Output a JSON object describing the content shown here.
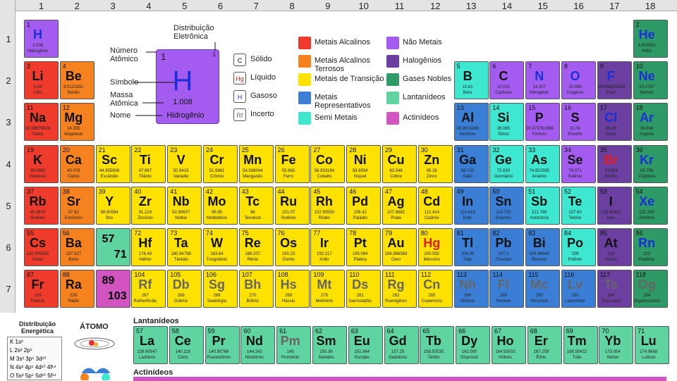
{
  "groups": [
    "1",
    "2",
    "3",
    "4",
    "5",
    "6",
    "7",
    "8",
    "9",
    "10",
    "11",
    "12",
    "13",
    "14",
    "15",
    "16",
    "17",
    "18"
  ],
  "periods": [
    "1",
    "2",
    "3",
    "4",
    "5",
    "6",
    "7"
  ],
  "colors": {
    "alkali": "#ee3b2b",
    "alkaline": "#f5821f",
    "transition": "#fde200",
    "representative": "#3a7fd5",
    "semimetal": "#3ee8d0",
    "nonmetal": "#a45cf0",
    "halogen": "#6b3fa0",
    "noble": "#2e9a66",
    "lanthanide": "#5fd3a0",
    "actinide": "#d154c0",
    "unknown": "#9e9e9e"
  },
  "legend": {
    "distribuicao": "Distribuição Eletrônica",
    "numero": "Número Atômico",
    "simbolo": "Símbolo",
    "massa": "Massa Atômica",
    "nome": "Nome",
    "example": {
      "num": "1",
      "sym": "H",
      "mass": "1.008",
      "name": "Hidrogênio"
    },
    "states": [
      {
        "key": "C",
        "label": "Sólido"
      },
      {
        "key": "Hg",
        "label": "Líquido"
      },
      {
        "key": "H",
        "label": "Gasoso"
      },
      {
        "key": "Rf",
        "label": "Incerto"
      }
    ],
    "categories": [
      {
        "cat": "alkali",
        "label": "Metais Alcalinos"
      },
      {
        "cat": "alkaline",
        "label": "Metais Alcalinos Terrosos"
      },
      {
        "cat": "transition",
        "label": "Metais de Transição"
      },
      {
        "cat": "representative",
        "label": "Metais Representativos"
      },
      {
        "cat": "semimetal",
        "label": "Semi Metais"
      },
      {
        "cat": "nonmetal",
        "label": "Não Metais"
      },
      {
        "cat": "halogen",
        "label": "Halogênios"
      },
      {
        "cat": "noble",
        "label": "Gases Nobles"
      },
      {
        "cat": "lanthanide",
        "label": "Lantanídeos"
      },
      {
        "cat": "actinide",
        "label": "Actinídeos"
      }
    ]
  },
  "series_labels": {
    "lantanideos": "Lantanídeos",
    "actinideos": "Actinídeos",
    "lan_range": "57\n71",
    "act_range": "89\n103"
  },
  "bottom_left": {
    "title": "Distribuição Energética",
    "atom": "ÁTOMO",
    "shells": [
      "K",
      "L",
      "M",
      "N",
      "O"
    ],
    "orbitals": [
      "1s²",
      "2s² 2p⁶",
      "3s² 3p⁶ 3d¹⁰",
      "4s² 4p⁶ 4d¹⁰ 4f¹⁴",
      "5s² 5p⁶ 5d¹⁰ 5f¹⁴"
    ]
  },
  "elements": [
    {
      "n": "1",
      "s": "H",
      "m": "1.008",
      "name": "Hidrogênio",
      "g": 1,
      "p": 1,
      "c": "nonmetal"
    },
    {
      "n": "2",
      "s": "He",
      "m": "4.002602",
      "name": "Hélio",
      "g": 18,
      "p": 1,
      "c": "noble"
    },
    {
      "n": "3",
      "s": "Li",
      "m": "6.94",
      "name": "Lítio",
      "g": 1,
      "p": 2,
      "c": "alkali"
    },
    {
      "n": "4",
      "s": "Be",
      "m": "9.0121831",
      "name": "Berílio",
      "g": 2,
      "p": 2,
      "c": "alkaline"
    },
    {
      "n": "5",
      "s": "B",
      "m": "10.81",
      "name": "Boro",
      "g": 13,
      "p": 2,
      "c": "semimetal"
    },
    {
      "n": "6",
      "s": "C",
      "m": "12.011",
      "name": "Carbono",
      "g": 14,
      "p": 2,
      "c": "nonmetal"
    },
    {
      "n": "7",
      "s": "N",
      "m": "14.007",
      "name": "Nitrogênio",
      "g": 15,
      "p": 2,
      "c": "nonmetal"
    },
    {
      "n": "8",
      "s": "O",
      "m": "15.999",
      "name": "Oxigênio",
      "g": 16,
      "p": 2,
      "c": "nonmetal"
    },
    {
      "n": "9",
      "s": "F",
      "m": "18.998403163",
      "name": "Flúor",
      "g": 17,
      "p": 2,
      "c": "halogen"
    },
    {
      "n": "10",
      "s": "Ne",
      "m": "20.1797",
      "name": "Neônio",
      "g": 18,
      "p": 2,
      "c": "noble"
    },
    {
      "n": "11",
      "s": "Na",
      "m": "22.98976928",
      "name": "Sódio",
      "g": 1,
      "p": 3,
      "c": "alkali"
    },
    {
      "n": "12",
      "s": "Mg",
      "m": "24.305",
      "name": "Magnésio",
      "g": 2,
      "p": 3,
      "c": "alkaline"
    },
    {
      "n": "13",
      "s": "Al",
      "m": "26.9815385",
      "name": "Alumínio",
      "g": 13,
      "p": 3,
      "c": "representative"
    },
    {
      "n": "14",
      "s": "Si",
      "m": "28.085",
      "name": "Silício",
      "g": 14,
      "p": 3,
      "c": "semimetal"
    },
    {
      "n": "15",
      "s": "P",
      "m": "30.973761998",
      "name": "Fósforo",
      "g": 15,
      "p": 3,
      "c": "nonmetal"
    },
    {
      "n": "16",
      "s": "S",
      "m": "32.06",
      "name": "Enxofre",
      "g": 16,
      "p": 3,
      "c": "nonmetal"
    },
    {
      "n": "17",
      "s": "Cl",
      "m": "35.45",
      "name": "Cloro",
      "g": 17,
      "p": 3,
      "c": "halogen"
    },
    {
      "n": "18",
      "s": "Ar",
      "m": "39.948",
      "name": "Argônio",
      "g": 18,
      "p": 3,
      "c": "noble"
    },
    {
      "n": "19",
      "s": "K",
      "m": "39.0983",
      "name": "Potássio",
      "g": 1,
      "p": 4,
      "c": "alkali"
    },
    {
      "n": "20",
      "s": "Ca",
      "m": "40.078",
      "name": "Cálcio",
      "g": 2,
      "p": 4,
      "c": "alkaline"
    },
    {
      "n": "21",
      "s": "Sc",
      "m": "44.955908",
      "name": "Escândio",
      "g": 3,
      "p": 4,
      "c": "transition"
    },
    {
      "n": "22",
      "s": "Ti",
      "m": "47.867",
      "name": "Titânio",
      "g": 4,
      "p": 4,
      "c": "transition"
    },
    {
      "n": "23",
      "s": "V",
      "m": "50.9415",
      "name": "Vanádio",
      "g": 5,
      "p": 4,
      "c": "transition"
    },
    {
      "n": "24",
      "s": "Cr",
      "m": "51.9961",
      "name": "Crômio",
      "g": 6,
      "p": 4,
      "c": "transition"
    },
    {
      "n": "25",
      "s": "Mn",
      "m": "54.938044",
      "name": "Manganês",
      "g": 7,
      "p": 4,
      "c": "transition"
    },
    {
      "n": "26",
      "s": "Fe",
      "m": "55.845",
      "name": "Ferro",
      "g": 8,
      "p": 4,
      "c": "transition"
    },
    {
      "n": "27",
      "s": "Co",
      "m": "58.933194",
      "name": "Cobalto",
      "g": 9,
      "p": 4,
      "c": "transition"
    },
    {
      "n": "28",
      "s": "Ni",
      "m": "58.6934",
      "name": "Níquel",
      "g": 10,
      "p": 4,
      "c": "transition"
    },
    {
      "n": "29",
      "s": "Cu",
      "m": "63.546",
      "name": "Cobre",
      "g": 11,
      "p": 4,
      "c": "transition"
    },
    {
      "n": "30",
      "s": "Zn",
      "m": "65.38",
      "name": "Zinco",
      "g": 12,
      "p": 4,
      "c": "transition"
    },
    {
      "n": "31",
      "s": "Ga",
      "m": "69.723",
      "name": "Gálio",
      "g": 13,
      "p": 4,
      "c": "representative"
    },
    {
      "n": "32",
      "s": "Ge",
      "m": "72.630",
      "name": "Germânio",
      "g": 14,
      "p": 4,
      "c": "semimetal"
    },
    {
      "n": "33",
      "s": "As",
      "m": "74.921595",
      "name": "Arsênio",
      "g": 15,
      "p": 4,
      "c": "semimetal"
    },
    {
      "n": "34",
      "s": "Se",
      "m": "78.971",
      "name": "Selênio",
      "g": 16,
      "p": 4,
      "c": "nonmetal"
    },
    {
      "n": "35",
      "s": "Br",
      "m": "79.904",
      "name": "Bromo",
      "g": 17,
      "p": 4,
      "c": "halogen"
    },
    {
      "n": "36",
      "s": "Kr",
      "m": "83.798",
      "name": "Criptônio",
      "g": 18,
      "p": 4,
      "c": "noble"
    },
    {
      "n": "37",
      "s": "Rb",
      "m": "85.4678",
      "name": "Rubídio",
      "g": 1,
      "p": 5,
      "c": "alkali"
    },
    {
      "n": "38",
      "s": "Sr",
      "m": "87.62",
      "name": "Estrôncio",
      "g": 2,
      "p": 5,
      "c": "alkaline"
    },
    {
      "n": "39",
      "s": "Y",
      "m": "88.90584",
      "name": "Ítrio",
      "g": 3,
      "p": 5,
      "c": "transition"
    },
    {
      "n": "40",
      "s": "Zr",
      "m": "91.224",
      "name": "Zircônio",
      "g": 4,
      "p": 5,
      "c": "transition"
    },
    {
      "n": "41",
      "s": "Nb",
      "m": "92.90637",
      "name": "Nióbio",
      "g": 5,
      "p": 5,
      "c": "transition"
    },
    {
      "n": "42",
      "s": "Mo",
      "m": "95.95",
      "name": "Molibdênio",
      "g": 6,
      "p": 5,
      "c": "transition"
    },
    {
      "n": "43",
      "s": "Tc",
      "m": "98",
      "name": "Tecnécio",
      "g": 7,
      "p": 5,
      "c": "transition"
    },
    {
      "n": "44",
      "s": "Ru",
      "m": "101.07",
      "name": "Rutênio",
      "g": 8,
      "p": 5,
      "c": "transition"
    },
    {
      "n": "45",
      "s": "Rh",
      "m": "102.90550",
      "name": "Ródio",
      "g": 9,
      "p": 5,
      "c": "transition"
    },
    {
      "n": "46",
      "s": "Pd",
      "m": "106.42",
      "name": "Paládio",
      "g": 10,
      "p": 5,
      "c": "transition"
    },
    {
      "n": "47",
      "s": "Ag",
      "m": "107.8682",
      "name": "Prata",
      "g": 11,
      "p": 5,
      "c": "transition"
    },
    {
      "n": "48",
      "s": "Cd",
      "m": "112.414",
      "name": "Cádmio",
      "g": 12,
      "p": 5,
      "c": "transition"
    },
    {
      "n": "49",
      "s": "In",
      "m": "114.818",
      "name": "Índio",
      "g": 13,
      "p": 5,
      "c": "representative"
    },
    {
      "n": "50",
      "s": "Sn",
      "m": "118.710",
      "name": "Estanho",
      "g": 14,
      "p": 5,
      "c": "representative"
    },
    {
      "n": "51",
      "s": "Sb",
      "m": "121.760",
      "name": "Antimônio",
      "g": 15,
      "p": 5,
      "c": "semimetal"
    },
    {
      "n": "52",
      "s": "Te",
      "m": "127.60",
      "name": "Telúrio",
      "g": 16,
      "p": 5,
      "c": "semimetal"
    },
    {
      "n": "53",
      "s": "I",
      "m": "126.90447",
      "name": "Iodo",
      "g": 17,
      "p": 5,
      "c": "halogen"
    },
    {
      "n": "54",
      "s": "Xe",
      "m": "131.293",
      "name": "Xenônio",
      "g": 18,
      "p": 5,
      "c": "noble"
    },
    {
      "n": "55",
      "s": "Cs",
      "m": "132.905452",
      "name": "Césio",
      "g": 1,
      "p": 6,
      "c": "alkali"
    },
    {
      "n": "56",
      "s": "Ba",
      "m": "137.327",
      "name": "Bário",
      "g": 2,
      "p": 6,
      "c": "alkaline"
    },
    {
      "n": "72",
      "s": "Hf",
      "m": "178.49",
      "name": "Háfnio",
      "g": 4,
      "p": 6,
      "c": "transition"
    },
    {
      "n": "73",
      "s": "Ta",
      "m": "180.94788",
      "name": "Tântalo",
      "g": 5,
      "p": 6,
      "c": "transition"
    },
    {
      "n": "74",
      "s": "W",
      "m": "183.84",
      "name": "Tungstênio",
      "g": 6,
      "p": 6,
      "c": "transition"
    },
    {
      "n": "75",
      "s": "Re",
      "m": "186.207",
      "name": "Rênio",
      "g": 7,
      "p": 6,
      "c": "transition"
    },
    {
      "n": "76",
      "s": "Os",
      "m": "190.23",
      "name": "Ósmio",
      "g": 8,
      "p": 6,
      "c": "transition"
    },
    {
      "n": "77",
      "s": "Ir",
      "m": "192.217",
      "name": "Irídio",
      "g": 9,
      "p": 6,
      "c": "transition"
    },
    {
      "n": "78",
      "s": "Pt",
      "m": "195.084",
      "name": "Platina",
      "g": 10,
      "p": 6,
      "c": "transition"
    },
    {
      "n": "79",
      "s": "Au",
      "m": "196.966569",
      "name": "Ouro",
      "g": 11,
      "p": 6,
      "c": "transition"
    },
    {
      "n": "80",
      "s": "Hg",
      "m": "200.592",
      "name": "Mercúrio",
      "g": 12,
      "p": 6,
      "c": "transition"
    },
    {
      "n": "81",
      "s": "Tl",
      "m": "204.38",
      "name": "Tálio",
      "g": 13,
      "p": 6,
      "c": "representative"
    },
    {
      "n": "82",
      "s": "Pb",
      "m": "207.2",
      "name": "Chumbo",
      "g": 14,
      "p": 6,
      "c": "representative"
    },
    {
      "n": "83",
      "s": "Bi",
      "m": "208.98040",
      "name": "Bismuto",
      "g": 15,
      "p": 6,
      "c": "representative"
    },
    {
      "n": "84",
      "s": "Po",
      "m": "209",
      "name": "Polônio",
      "g": 16,
      "p": 6,
      "c": "semimetal"
    },
    {
      "n": "85",
      "s": "At",
      "m": "210",
      "name": "Astato",
      "g": 17,
      "p": 6,
      "c": "halogen"
    },
    {
      "n": "86",
      "s": "Rn",
      "m": "222",
      "name": "Radônio",
      "g": 18,
      "p": 6,
      "c": "noble"
    },
    {
      "n": "87",
      "s": "Fr",
      "m": "223",
      "name": "Frâncio",
      "g": 1,
      "p": 7,
      "c": "alkali"
    },
    {
      "n": "88",
      "s": "Ra",
      "m": "226",
      "name": "Rádio",
      "g": 2,
      "p": 7,
      "c": "alkaline"
    },
    {
      "n": "104",
      "s": "Rf",
      "m": "267",
      "name": "Rutherfórdio",
      "g": 4,
      "p": 7,
      "c": "transition"
    },
    {
      "n": "105",
      "s": "Db",
      "m": "268",
      "name": "Dúbnio",
      "g": 5,
      "p": 7,
      "c": "transition"
    },
    {
      "n": "106",
      "s": "Sg",
      "m": "269",
      "name": "Seabórgio",
      "g": 6,
      "p": 7,
      "c": "transition"
    },
    {
      "n": "107",
      "s": "Bh",
      "m": "270",
      "name": "Bóhrio",
      "g": 7,
      "p": 7,
      "c": "transition"
    },
    {
      "n": "108",
      "s": "Hs",
      "m": "269",
      "name": "Hássio",
      "g": 8,
      "p": 7,
      "c": "transition"
    },
    {
      "n": "109",
      "s": "Mt",
      "m": "278",
      "name": "Meitnério",
      "g": 9,
      "p": 7,
      "c": "transition"
    },
    {
      "n": "110",
      "s": "Ds",
      "m": "281",
      "name": "Darmstádtio",
      "g": 10,
      "p": 7,
      "c": "transition"
    },
    {
      "n": "111",
      "s": "Rg",
      "m": "282",
      "name": "Roentgênio",
      "g": 11,
      "p": 7,
      "c": "transition"
    },
    {
      "n": "112",
      "s": "Cn",
      "m": "285",
      "name": "Copernício",
      "g": 12,
      "p": 7,
      "c": "transition"
    },
    {
      "n": "113",
      "s": "Nh",
      "m": "286",
      "name": "Nihônio",
      "g": 13,
      "p": 7,
      "c": "representative"
    },
    {
      "n": "114",
      "s": "Fl",
      "m": "289",
      "name": "Fleróvio",
      "g": 14,
      "p": 7,
      "c": "representative"
    },
    {
      "n": "115",
      "s": "Mc",
      "m": "290",
      "name": "Moscóvio",
      "g": 15,
      "p": 7,
      "c": "representative"
    },
    {
      "n": "116",
      "s": "Lv",
      "m": "293",
      "name": "Livermório",
      "g": 16,
      "p": 7,
      "c": "representative"
    },
    {
      "n": "117",
      "s": "Ts",
      "m": "294",
      "name": "Tenessino",
      "g": 17,
      "p": 7,
      "c": "halogen"
    },
    {
      "n": "118",
      "s": "Og",
      "m": "294",
      "name": "Organessônio",
      "g": 18,
      "p": 7,
      "c": "noble"
    }
  ],
  "lanthanides": [
    {
      "n": "57",
      "s": "La",
      "m": "138.90547",
      "name": "Lantânio"
    },
    {
      "n": "58",
      "s": "Ce",
      "m": "140.116",
      "name": "Cério"
    },
    {
      "n": "59",
      "s": "Pr",
      "m": "140.90766",
      "name": "Praseodímio"
    },
    {
      "n": "60",
      "s": "Nd",
      "m": "144.242",
      "name": "Neodímio"
    },
    {
      "n": "61",
      "s": "Pm",
      "m": "145",
      "name": "Promécio"
    },
    {
      "n": "62",
      "s": "Sm",
      "m": "150.36",
      "name": "Samário"
    },
    {
      "n": "63",
      "s": "Eu",
      "m": "151.964",
      "name": "Európio"
    },
    {
      "n": "64",
      "s": "Gd",
      "m": "157.25",
      "name": "Gadolínio"
    },
    {
      "n": "65",
      "s": "Tb",
      "m": "158.92535",
      "name": "Térbio"
    },
    {
      "n": "66",
      "s": "Dy",
      "m": "162.500",
      "name": "Disprósio"
    },
    {
      "n": "67",
      "s": "Ho",
      "m": "164.93033",
      "name": "Hólmio"
    },
    {
      "n": "68",
      "s": "Er",
      "m": "167.259",
      "name": "Érbio"
    },
    {
      "n": "69",
      "s": "Tm",
      "m": "168.93422",
      "name": "Túlio"
    },
    {
      "n": "70",
      "s": "Yb",
      "m": "173.054",
      "name": "Itérbio"
    },
    {
      "n": "71",
      "s": "Lu",
      "m": "174.9668",
      "name": "Lutécio"
    }
  ]
}
